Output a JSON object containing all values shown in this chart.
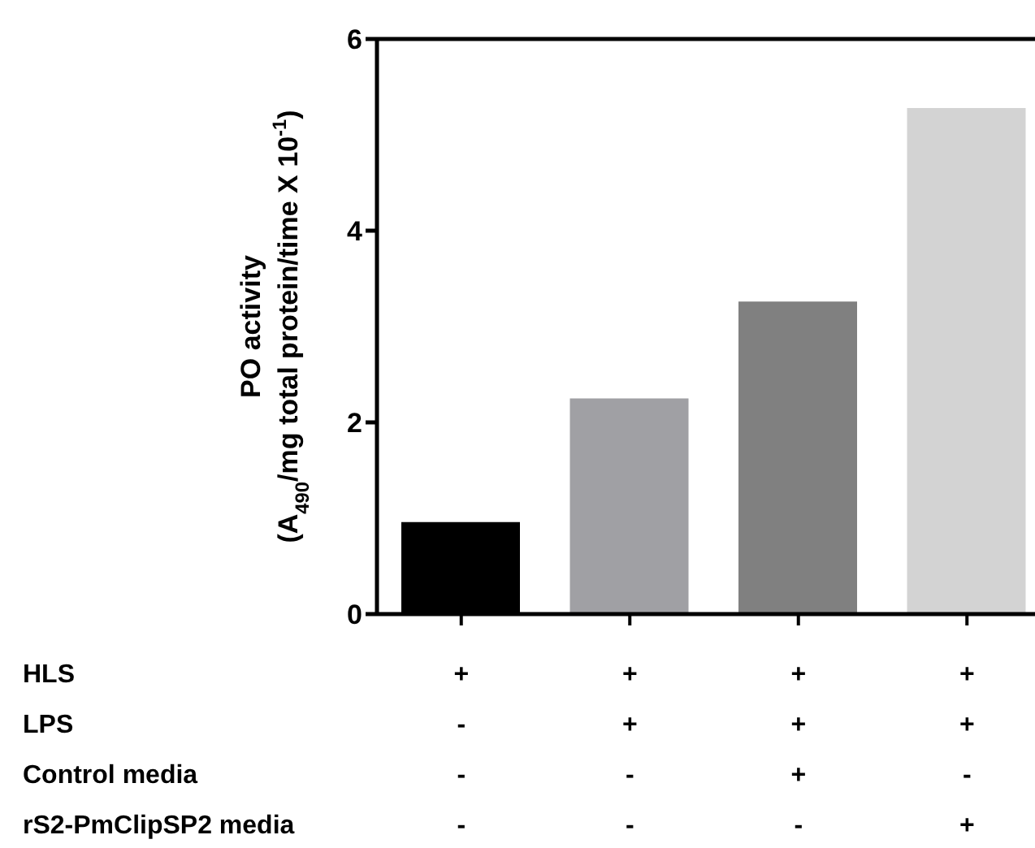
{
  "chart_data": {
    "type": "bar",
    "ylabel": "PO activity\n(A$_{490}$/mg total protein/time X 10$^{-1}$)",
    "categories": [
      "+\n-\n-\n-",
      "+\n+\n-\n-",
      "+\n+\n+\n-",
      "+\n+\n-\n+"
    ],
    "values": [
      0.96,
      2.25,
      3.26,
      5.28
    ],
    "colors": [
      "#000000",
      "#a0a0a4",
      "#808080",
      "#d3d3d3"
    ],
    "ylim": [
      0,
      6
    ],
    "yticks": [
      0,
      2,
      4,
      6
    ],
    "annotations": [
      "HLS",
      "LPS",
      "Control media",
      "rS2-PmClipSP2 media"
    ]
  }
}
